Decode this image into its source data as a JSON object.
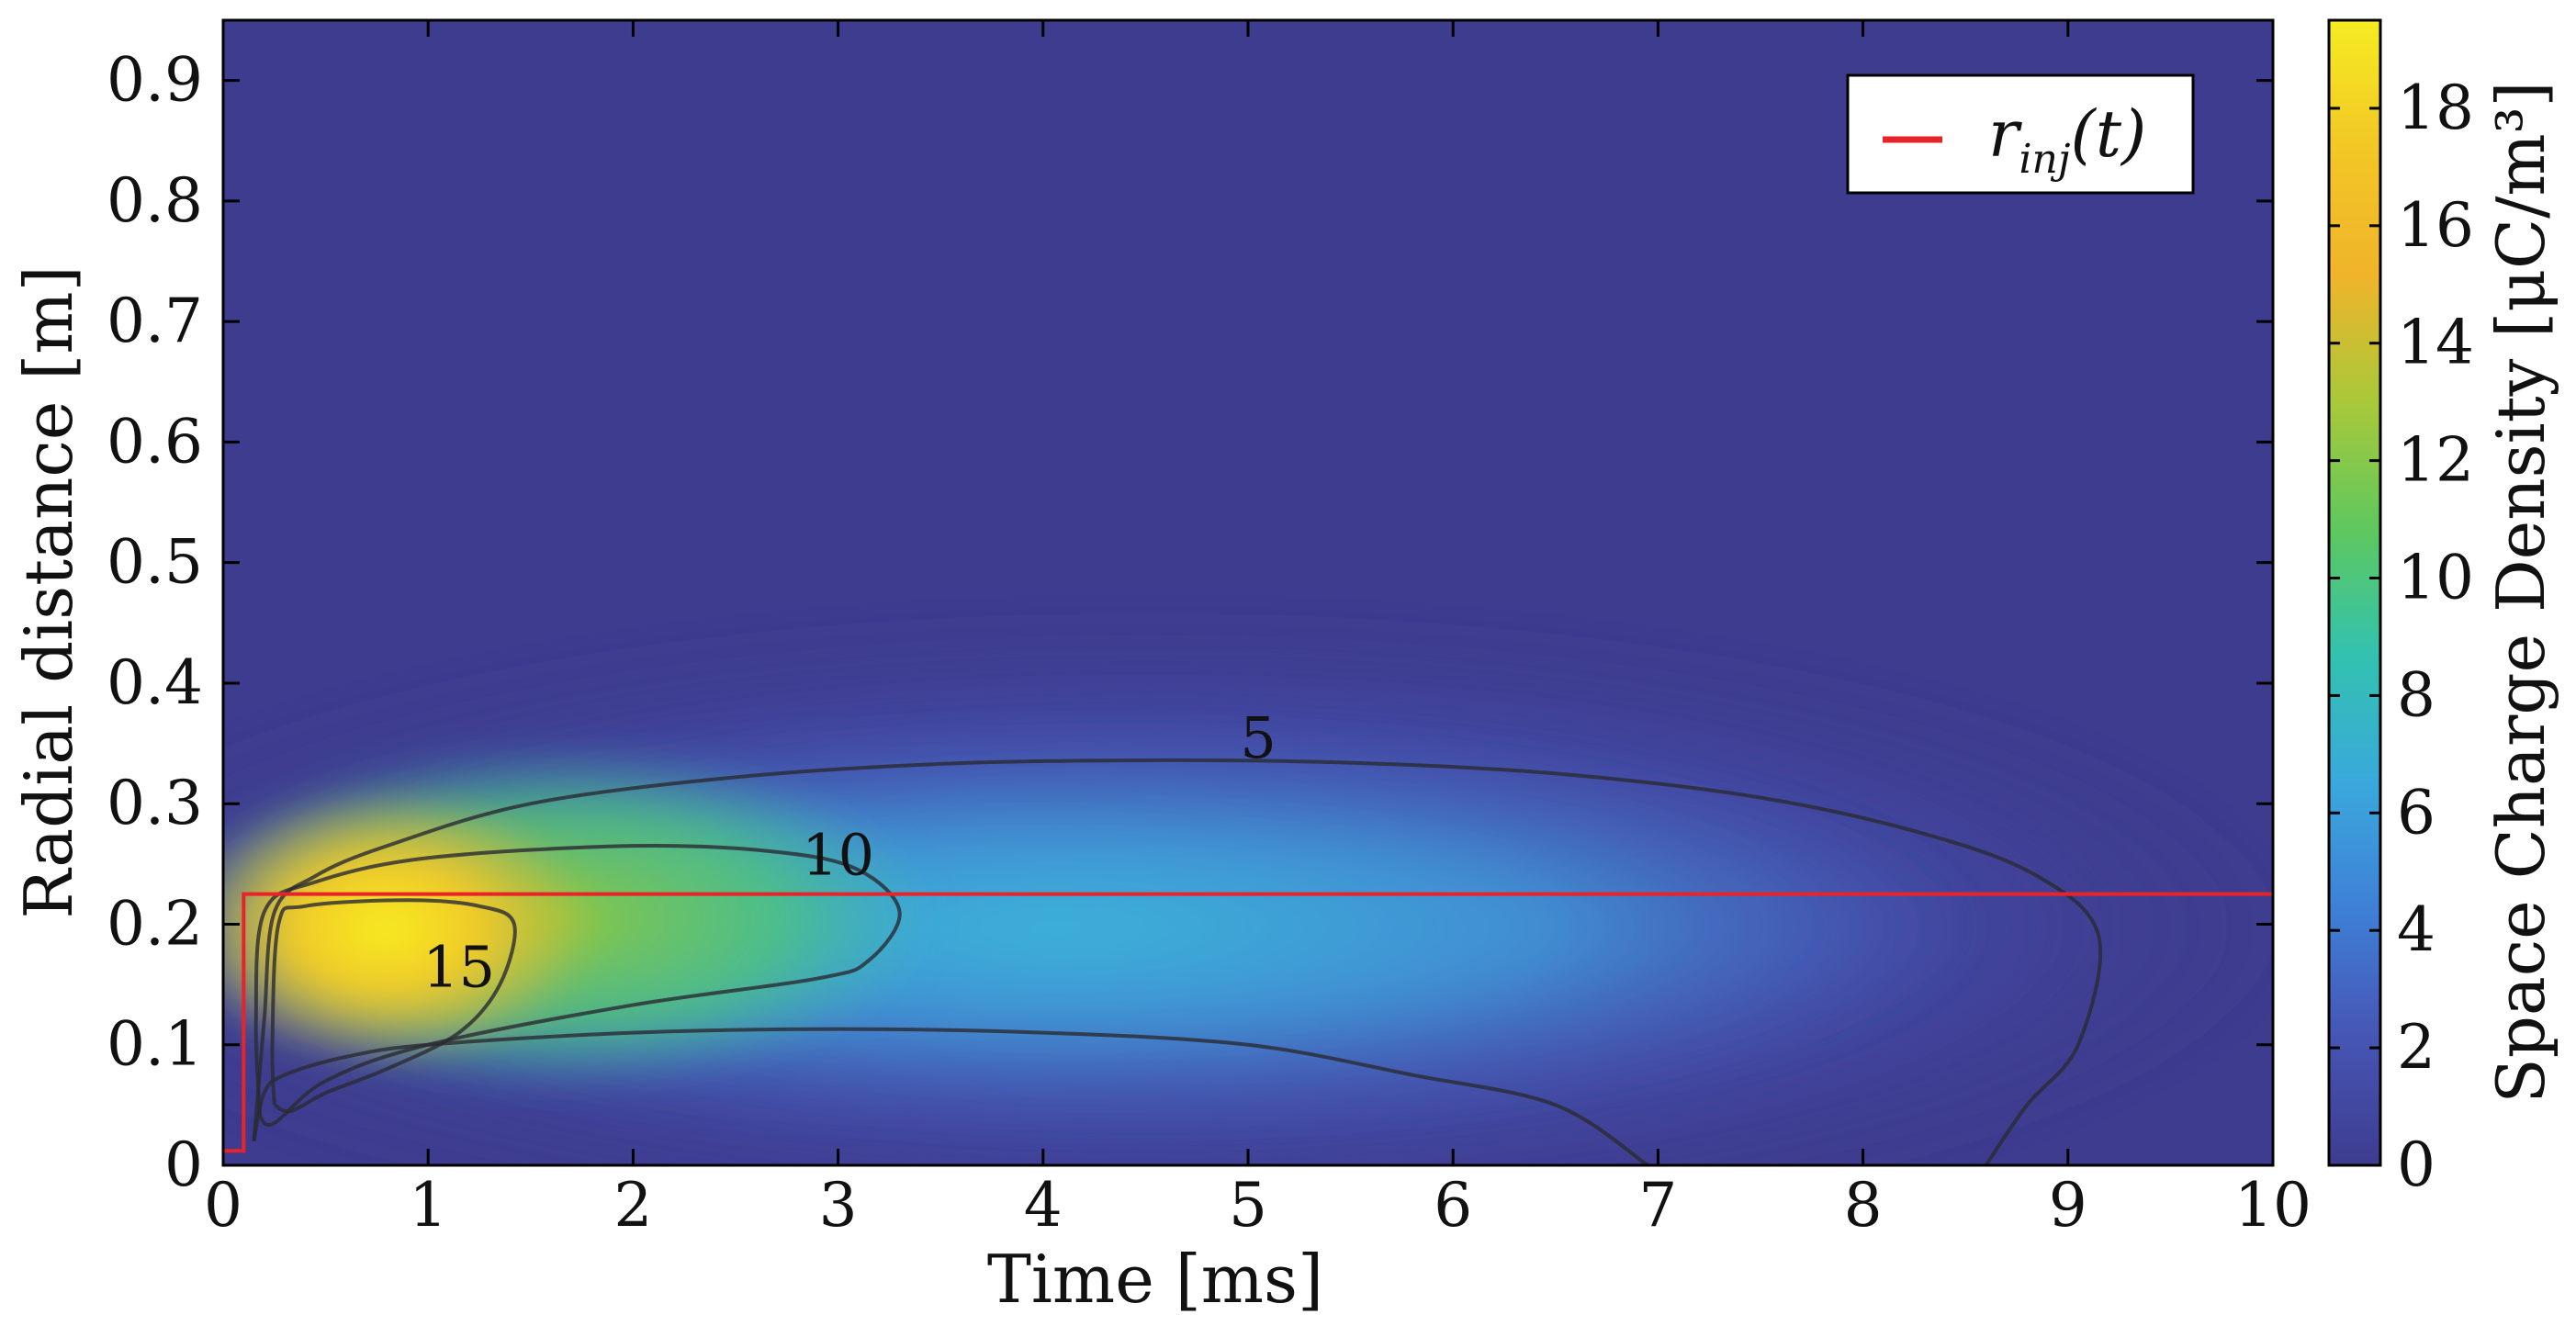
{
  "chart_data": {
    "type": "heatmap",
    "xlabel": "Time [ms]",
    "ylabel": "Radial distance [m]",
    "xlim": [
      0,
      10
    ],
    "ylim": [
      0,
      0.95
    ],
    "x_ticks": [
      "0",
      "1",
      "2",
      "3",
      "4",
      "5",
      "6",
      "7",
      "8",
      "9",
      "10"
    ],
    "y_ticks": [
      "0",
      "0.1",
      "0.2",
      "0.3",
      "0.4",
      "0.5",
      "0.6",
      "0.7",
      "0.8",
      "0.9"
    ],
    "colorbar": {
      "label": "Space Charge Density [μC/m³]",
      "range": [
        0,
        19.5
      ],
      "ticks": [
        "0",
        "2",
        "4",
        "6",
        "8",
        "10",
        "12",
        "14",
        "16",
        "18"
      ],
      "colors": [
        "#3e3c8f",
        "#4655b4",
        "#3f7fd6",
        "#3aa8dc",
        "#32c2b0",
        "#5ec85e",
        "#a9c83a",
        "#f0b42a",
        "#f2c726",
        "#f5ec22"
      ]
    },
    "contours": [
      {
        "level": "5",
        "label_at": [
          5.05,
          0.355
        ],
        "points": [
          [
            0.15,
            0.02
          ],
          [
            0.2,
            0.12
          ],
          [
            0.25,
            0.21
          ],
          [
            0.45,
            0.24
          ],
          [
            0.8,
            0.265
          ],
          [
            1.5,
            0.3
          ],
          [
            2.5,
            0.322
          ],
          [
            3.5,
            0.333
          ],
          [
            4.5,
            0.336
          ],
          [
            5.5,
            0.334
          ],
          [
            6.5,
            0.325
          ],
          [
            7.5,
            0.305
          ],
          [
            8.3,
            0.275
          ],
          [
            8.85,
            0.24
          ],
          [
            9.15,
            0.19
          ],
          [
            9.05,
            0.1
          ],
          [
            8.8,
            0.05
          ],
          [
            8.6,
            0.0
          ]
        ]
      },
      {
        "level": "5",
        "label_at": null,
        "points": [
          [
            0.15,
            0.02
          ],
          [
            0.2,
            0.06
          ],
          [
            0.3,
            0.075
          ],
          [
            0.6,
            0.09
          ],
          [
            1.0,
            0.1
          ],
          [
            2.0,
            0.11
          ],
          [
            3.0,
            0.113
          ],
          [
            4.0,
            0.11
          ],
          [
            5.0,
            0.1
          ],
          [
            5.8,
            0.075
          ],
          [
            6.5,
            0.05
          ],
          [
            6.95,
            0.0
          ]
        ]
      },
      {
        "level": "10",
        "label_at": [
          3.0,
          0.258
        ],
        "points": [
          [
            0.18,
            0.04
          ],
          [
            0.16,
            0.12
          ],
          [
            0.2,
            0.21
          ],
          [
            0.45,
            0.235
          ],
          [
            1.0,
            0.255
          ],
          [
            2.0,
            0.265
          ],
          [
            2.7,
            0.26
          ],
          [
            3.1,
            0.245
          ],
          [
            3.3,
            0.21
          ],
          [
            3.15,
            0.17
          ],
          [
            2.9,
            0.155
          ],
          [
            2.0,
            0.133
          ],
          [
            1.0,
            0.1
          ],
          [
            0.5,
            0.07
          ],
          [
            0.25,
            0.035
          ],
          [
            0.18,
            0.04
          ]
        ]
      },
      {
        "level": "15",
        "label_at": [
          1.15,
          0.165
        ],
        "points": [
          [
            0.25,
            0.05
          ],
          [
            0.24,
            0.1
          ],
          [
            0.27,
            0.2
          ],
          [
            0.4,
            0.215
          ],
          [
            0.9,
            0.22
          ],
          [
            1.25,
            0.215
          ],
          [
            1.42,
            0.2
          ],
          [
            1.35,
            0.15
          ],
          [
            1.15,
            0.11
          ],
          [
            0.8,
            0.08
          ],
          [
            0.5,
            0.06
          ],
          [
            0.33,
            0.045
          ],
          [
            0.25,
            0.05
          ]
        ]
      }
    ],
    "series": [
      {
        "name": "r_inj(t)",
        "color": "#e8232a",
        "x": [
          0,
          0.1,
          0.1,
          10
        ],
        "y": [
          0.012,
          0.012,
          0.225,
          0.225
        ]
      }
    ],
    "legend": {
      "position": "top-right",
      "entry": "r",
      "entry_sub": "inj",
      "entry_suffix": "(t)"
    }
  }
}
